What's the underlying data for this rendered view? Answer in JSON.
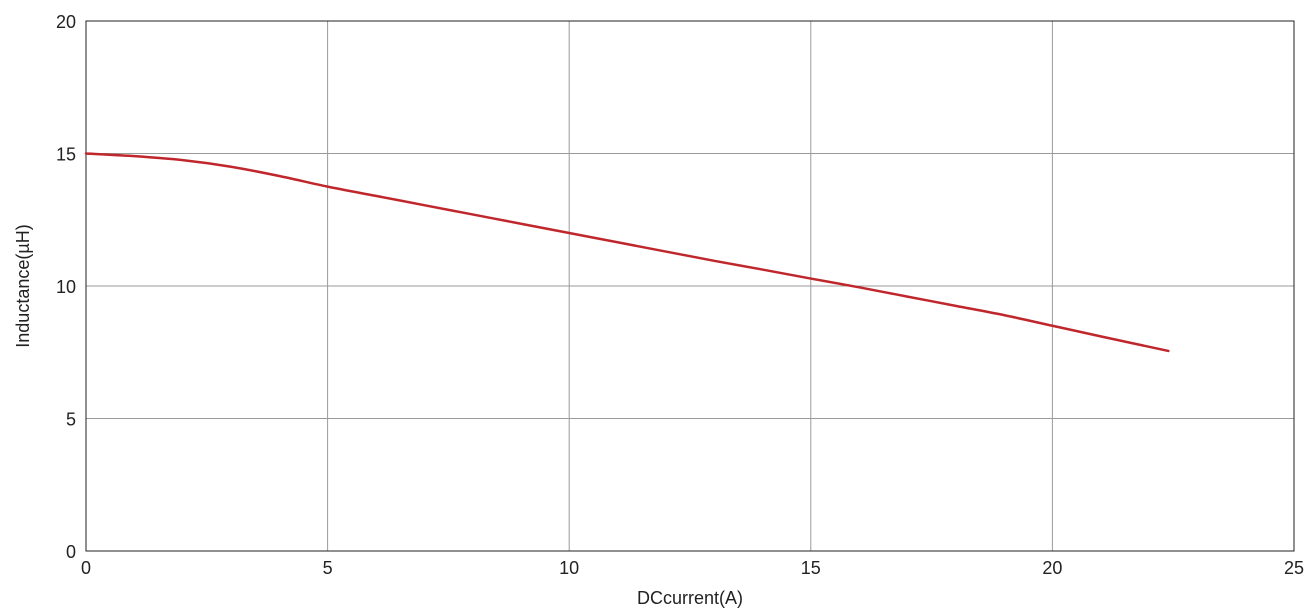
{
  "chart_data": {
    "type": "line",
    "title": "",
    "xlabel": "DCcurrent(A)",
    "ylabel": "Inductance(µH)",
    "xlim": [
      0,
      25
    ],
    "ylim": [
      0,
      20
    ],
    "xticks": [
      0,
      5,
      10,
      15,
      20,
      25
    ],
    "yticks": [
      0,
      5,
      10,
      15,
      20
    ],
    "grid": true,
    "series": [
      {
        "color": "#c0272d",
        "x": [
          0,
          1,
          2,
          3,
          4,
          5,
          6,
          7,
          8,
          9,
          10,
          11,
          12,
          13,
          14,
          15,
          16,
          17,
          18,
          19,
          20,
          21,
          22.4
        ],
        "y": [
          15.0,
          14.9,
          14.75,
          14.5,
          14.15,
          13.75,
          13.4,
          13.05,
          12.7,
          12.35,
          12.0,
          11.65,
          11.3,
          10.95,
          10.62,
          10.28,
          9.95,
          9.6,
          9.25,
          8.9,
          8.5,
          8.1,
          7.55
        ]
      }
    ]
  }
}
